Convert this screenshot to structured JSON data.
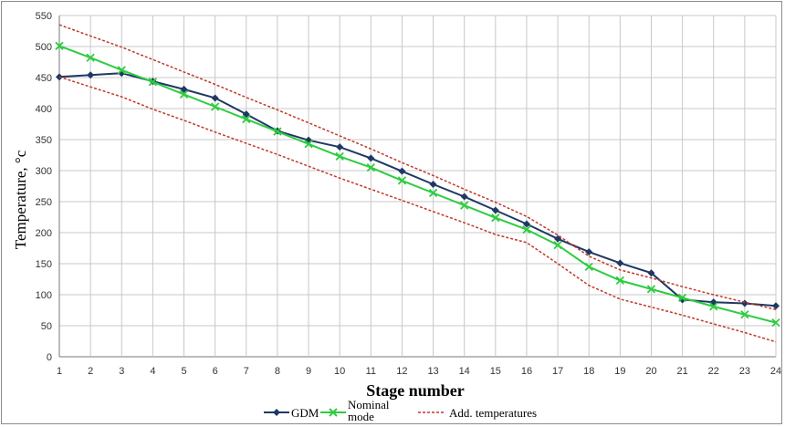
{
  "chart_data": {
    "type": "line",
    "xlabel": "Stage number",
    "ylabel": "Temperature, °c",
    "x": [
      1,
      2,
      3,
      4,
      5,
      6,
      7,
      8,
      9,
      10,
      11,
      12,
      13,
      14,
      15,
      16,
      17,
      18,
      19,
      20,
      21,
      22,
      23,
      24
    ],
    "xlim": [
      1,
      24
    ],
    "ylim": [
      0,
      550
    ],
    "yticks": [
      0,
      50,
      100,
      150,
      200,
      250,
      300,
      350,
      400,
      450,
      500,
      550
    ],
    "grid": true,
    "legend_position": "bottom",
    "series": [
      {
        "name": "GDM",
        "color": "#1f3864",
        "marker": "diamond",
        "style": "solid",
        "values": [
          451,
          454,
          457,
          444,
          431,
          417,
          391,
          364,
          349,
          338,
          320,
          299,
          278,
          258,
          236,
          214,
          190,
          169,
          151,
          135,
          92,
          88,
          86,
          82
        ]
      },
      {
        "name": "Nominal mode",
        "color": "#2ecc40",
        "marker": "x",
        "style": "solid",
        "values": [
          501,
          482,
          462,
          443,
          423,
          403,
          383,
          363,
          343,
          323,
          305,
          284,
          264,
          244,
          224,
          205,
          180,
          145,
          123,
          109,
          95,
          81,
          68,
          55
        ]
      },
      {
        "name": "Add. temperatures",
        "color": "#c0392b",
        "marker": "none",
        "style": "dashed",
        "values": [
          535,
          517,
          499,
          479,
          459,
          439,
          418,
          398,
          377,
          356,
          335,
          313,
          292,
          270,
          249,
          226,
          196,
          162,
          140,
          127,
          113,
          100,
          88,
          76
        ]
      },
      {
        "name": "",
        "color": "#c0392b",
        "marker": "none",
        "style": "dashed",
        "legend": false,
        "values": [
          451,
          435,
          419,
          399,
          381,
          362,
          344,
          326,
          307,
          288,
          270,
          252,
          234,
          216,
          197,
          184,
          150,
          115,
          93,
          80,
          67,
          53,
          39,
          24
        ]
      }
    ]
  }
}
